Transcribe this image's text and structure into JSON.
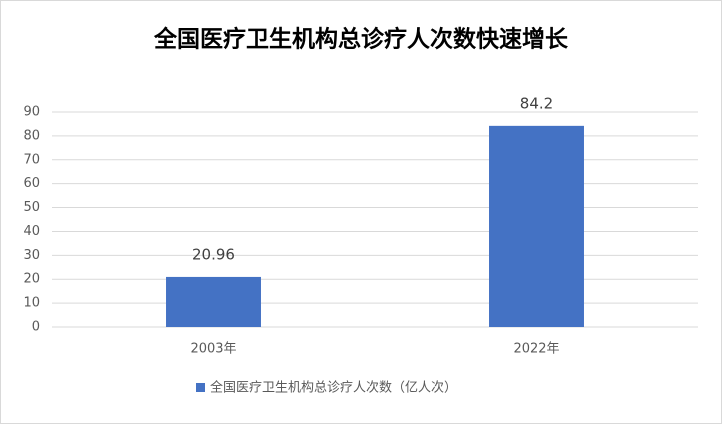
{
  "chart_data": {
    "type": "bar",
    "title": "全国医疗卫生机构总诊疗人次数快速增长",
    "categories": [
      "2003年",
      "2022年"
    ],
    "series": [
      {
        "name": "全国医疗卫生机构总诊疗人次数（亿人次）",
        "color": "#4472c4",
        "values": [
          20.96,
          84.2
        ]
      }
    ],
    "ylim": [
      0,
      90
    ],
    "yticks": [
      0,
      10,
      20,
      30,
      40,
      50,
      60,
      70,
      80,
      90
    ],
    "grid": true
  }
}
